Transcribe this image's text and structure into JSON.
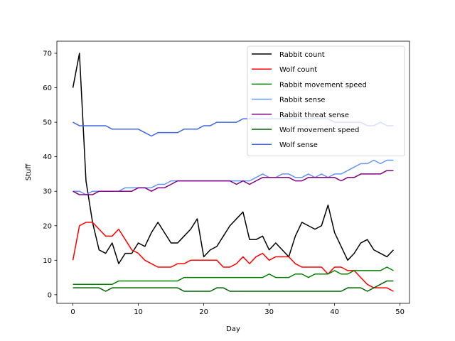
{
  "chart_data": {
    "type": "line",
    "title": "",
    "xlabel": "Day",
    "ylabel": "Stuff",
    "xlim": [
      -2.45,
      51.45
    ],
    "ylim": [
      -2.5,
      73.5
    ],
    "xticks": [
      0,
      10,
      20,
      30,
      40,
      50
    ],
    "yticks": [
      0,
      10,
      20,
      30,
      40,
      50,
      60,
      70
    ],
    "grid": false,
    "legend_position": "upper right",
    "x": [
      0,
      1,
      2,
      3,
      4,
      5,
      6,
      7,
      8,
      9,
      10,
      11,
      12,
      13,
      14,
      15,
      16,
      17,
      18,
      19,
      20,
      21,
      22,
      23,
      24,
      25,
      26,
      27,
      28,
      29,
      30,
      31,
      32,
      33,
      34,
      35,
      36,
      37,
      38,
      39,
      40,
      41,
      42,
      43,
      44,
      45,
      46,
      47,
      48,
      49
    ],
    "series": [
      {
        "name": "Rabbit count",
        "color": "#000000",
        "values": [
          60,
          70,
          33,
          21,
          13,
          12,
          15,
          9,
          12,
          12,
          15,
          14,
          18,
          21,
          18,
          15,
          15,
          17,
          19,
          22,
          11,
          13,
          14,
          17,
          20,
          22,
          24,
          16,
          16,
          17,
          13,
          15,
          13,
          11,
          17,
          21,
          20,
          19,
          20,
          26,
          18,
          14,
          10,
          12,
          15,
          16,
          13,
          12,
          11,
          13
        ]
      },
      {
        "name": "Wolf count",
        "color": "#ff0000",
        "values": [
          10,
          20,
          21,
          21,
          19,
          17,
          17,
          19,
          16,
          13,
          12,
          10,
          9,
          8,
          8,
          8,
          9,
          9,
          10,
          10,
          10,
          10,
          10,
          8,
          8,
          9,
          11,
          9,
          11,
          12,
          10,
          11,
          11,
          11,
          9,
          8,
          8,
          8,
          8,
          6,
          8,
          8,
          7,
          7,
          5,
          3,
          2,
          2,
          2,
          1
        ]
      },
      {
        "name": "Rabbit movement speed",
        "color": "#008000",
        "values": [
          3,
          3,
          3,
          3,
          3,
          3,
          3,
          4,
          4,
          4,
          4,
          4,
          4,
          4,
          4,
          4,
          4,
          5,
          5,
          5,
          5,
          5,
          5,
          5,
          5,
          5,
          5,
          5,
          5,
          5,
          6,
          5,
          5,
          5,
          6,
          6,
          5,
          6,
          6,
          6,
          7,
          6,
          6,
          7,
          7,
          7,
          7,
          7,
          8,
          7
        ]
      },
      {
        "name": "Rabbit sense",
        "color": "#6495ed",
        "values": [
          30,
          30,
          29,
          30,
          30,
          30,
          30,
          30,
          31,
          31,
          31,
          31,
          31,
          32,
          32,
          33,
          33,
          33,
          33,
          33,
          33,
          33,
          33,
          33,
          33,
          33,
          33,
          33,
          34,
          35,
          34,
          34,
          35,
          35,
          34,
          34,
          35,
          34,
          35,
          34,
          35,
          35,
          36,
          37,
          38,
          38,
          39,
          38,
          39,
          39
        ]
      },
      {
        "name": "Rabbit threat sense",
        "color": "#800080",
        "values": [
          30,
          29,
          29,
          29,
          30,
          30,
          30,
          30,
          30,
          30,
          31,
          31,
          30,
          31,
          31,
          32,
          33,
          33,
          33,
          33,
          33,
          33,
          33,
          33,
          33,
          32,
          33,
          32,
          33,
          34,
          34,
          34,
          34,
          34,
          33,
          33,
          34,
          34,
          34,
          34,
          34,
          33,
          34,
          34,
          35,
          35,
          35,
          35,
          36,
          36
        ]
      },
      {
        "name": "Wolf movement speed",
        "color": "#006400",
        "values": [
          2,
          2,
          2,
          2,
          2,
          1,
          2,
          2,
          2,
          2,
          2,
          2,
          2,
          2,
          2,
          2,
          2,
          1,
          1,
          1,
          1,
          1,
          2,
          2,
          1,
          1,
          1,
          1,
          1,
          1,
          1,
          1,
          1,
          1,
          1,
          1,
          1,
          1,
          1,
          1,
          1,
          1,
          2,
          2,
          2,
          1,
          2,
          3,
          4,
          4
        ]
      },
      {
        "name": "Wolf sense",
        "color": "#4169e1",
        "values": [
          50,
          49,
          49,
          49,
          49,
          49,
          48,
          48,
          48,
          48,
          48,
          47,
          46,
          47,
          47,
          47,
          47,
          48,
          48,
          48,
          49,
          49,
          50,
          50,
          50,
          50,
          51,
          51,
          51,
          51,
          51,
          51,
          51,
          51,
          51,
          51,
          51,
          51,
          51,
          51,
          50,
          50,
          50,
          50,
          50,
          49,
          49,
          50,
          49,
          49
        ]
      }
    ]
  }
}
